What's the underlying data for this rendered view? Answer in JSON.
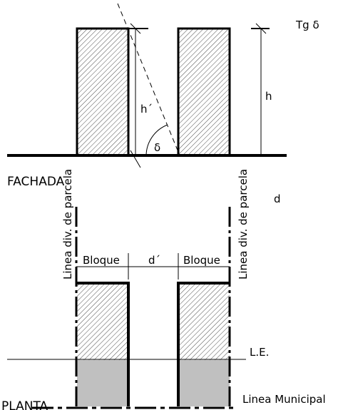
{
  "fachada": {
    "tg_label": "Tg δ",
    "h_prime": "h´",
    "delta": "δ",
    "h": "h",
    "title": "FACHADA",
    "d": "d"
  },
  "planta": {
    "lindero_left": "Linea div. de parcela",
    "lindero_right": "Linea div. de parcela",
    "bloque_left": "Bloque",
    "d_prime": "d´",
    "bloque_right": "Bloque",
    "le": "L.E.",
    "municipal": "Linea Municipal",
    "title": "PLANTA"
  }
}
